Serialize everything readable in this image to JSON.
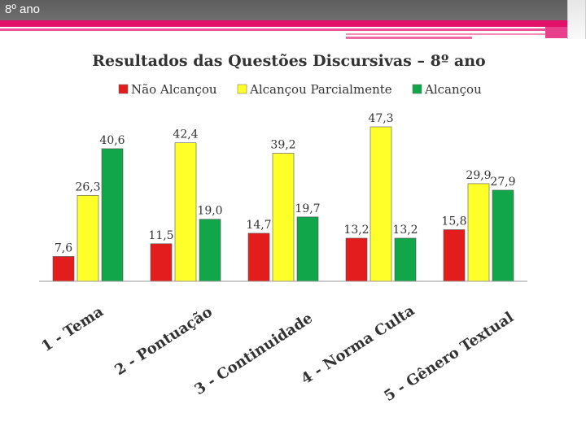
{
  "slide": {
    "title": "8º ano"
  },
  "colors": {
    "header": "#666666",
    "accent_pink": "#e3106a",
    "series": [
      "#e31d1d",
      "#ffff2a",
      "#12a64a"
    ]
  },
  "chart_data": {
    "type": "bar",
    "title": "Resultados das Questões Discursivas – 8º ano",
    "xlabel": "",
    "ylabel": "",
    "ylim": [
      0,
      50
    ],
    "grid": false,
    "legend": "top",
    "categories": [
      "1 - Tema",
      "2 - Pontuação",
      "3 - Continuidade",
      "4 - Norma Culta",
      "5 - Gênero Textual"
    ],
    "series": [
      {
        "name": "Não Alcançou",
        "color": "#e31d1d",
        "values": [
          7.6,
          11.5,
          14.7,
          13.2,
          15.8
        ],
        "labels": [
          "7,6",
          "11,5",
          "14,7",
          "13,2",
          "15,8"
        ]
      },
      {
        "name": "Alcançou Parcialmente",
        "color": "#ffff2a",
        "values": [
          26.3,
          42.4,
          39.2,
          47.3,
          29.9
        ],
        "labels": [
          "26,3",
          "42,4",
          "39,2",
          "47,3",
          "29,9"
        ]
      },
      {
        "name": "Alcançou",
        "color": "#12a64a",
        "values": [
          40.6,
          19.0,
          19.7,
          13.2,
          27.9
        ],
        "labels": [
          "40,6",
          "19,0",
          "19,7",
          "13,2",
          "27,9"
        ]
      }
    ]
  }
}
